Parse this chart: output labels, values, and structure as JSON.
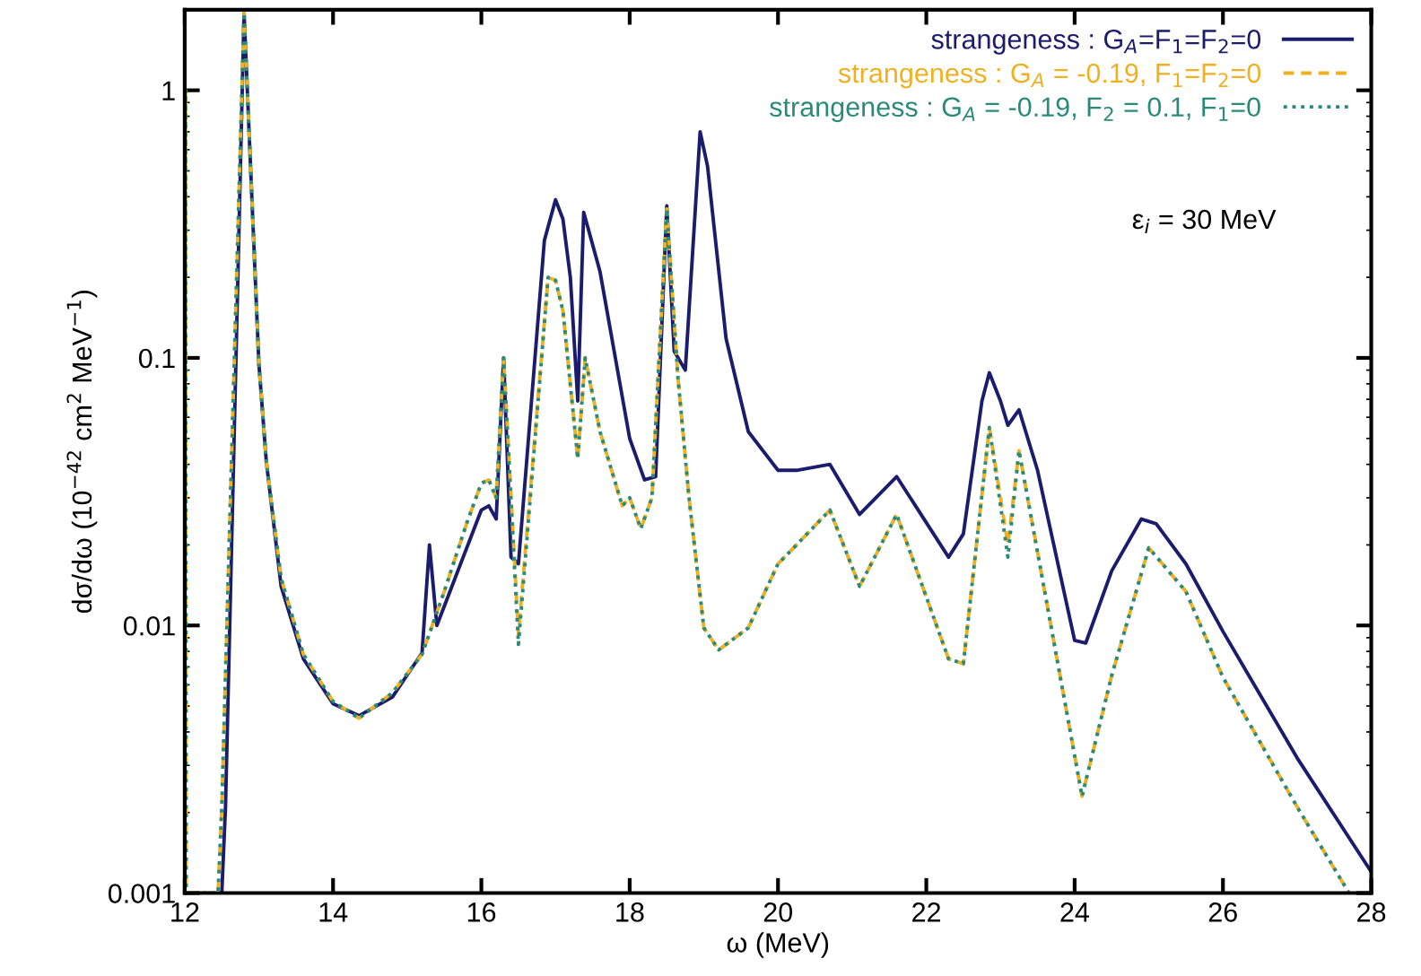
{
  "chart_data": {
    "type": "line",
    "xlabel": "ω (MeV)",
    "ylabel": "dσ/dω (10$^{−42}$ cm$^{2}$ MeV$^{−1}$)",
    "log": "y",
    "xlim": [
      12,
      28
    ],
    "ylim": [
      0.001,
      2
    ],
    "xticks": [
      12,
      14,
      16,
      18,
      20,
      22,
      24,
      26,
      28
    ],
    "yticks": [
      0.001,
      0.01,
      0.1,
      1
    ],
    "grid": false,
    "legend": "top right",
    "marker": "none",
    "annotations": [
      "ε$_{i}$ = 30 MeV"
    ],
    "series": [
      {
        "name": "strangeness : G$_{A}$=F$_{1}$=F$_{2}$=0",
        "color": "#1c1c6e",
        "line_style": "solid",
        "x": [
          12.5,
          12.55,
          12.8,
          13.0,
          13.1,
          13.3,
          13.6,
          14.0,
          14.35,
          14.8,
          15.2,
          15.3,
          15.4,
          16.0,
          16.1,
          16.2,
          16.3,
          16.4,
          16.5,
          16.85,
          17.0,
          17.1,
          17.2,
          17.3,
          17.38,
          17.6,
          18.0,
          18.2,
          18.35,
          18.5,
          18.6,
          18.75,
          18.95,
          19.05,
          19.3,
          19.6,
          20.0,
          20.25,
          20.7,
          21.1,
          21.6,
          22.3,
          22.5,
          22.75,
          22.85,
          23.0,
          23.1,
          23.25,
          23.5,
          24.0,
          24.15,
          24.5,
          24.9,
          25.1,
          25.5,
          26.0,
          27.0,
          28.0
        ],
        "values": [
          0.001,
          0.0021,
          1.95,
          0.095,
          0.041,
          0.014,
          0.0075,
          0.0051,
          0.0046,
          0.0054,
          0.0079,
          0.02,
          0.01,
          0.027,
          0.028,
          0.025,
          0.1,
          0.018,
          0.017,
          0.275,
          0.39,
          0.33,
          0.2,
          0.069,
          0.35,
          0.21,
          0.05,
          0.035,
          0.036,
          0.37,
          0.106,
          0.09,
          0.7,
          0.52,
          0.118,
          0.053,
          0.038,
          0.038,
          0.04,
          0.026,
          0.036,
          0.018,
          0.022,
          0.069,
          0.088,
          0.069,
          0.056,
          0.064,
          0.038,
          0.0088,
          0.0086,
          0.016,
          0.025,
          0.024,
          0.017,
          0.0095,
          0.0032,
          0.0012
        ]
      },
      {
        "name": "strangeness : G$_{A}$ = -0.19, F$_{1}$=F$_{2}$=0",
        "color": "#f0b020",
        "line_style": "dashed",
        "x": [
          12.0,
          12.01,
          12.02,
          12.45,
          12.5,
          12.8,
          13.0,
          13.1,
          13.3,
          13.6,
          14.0,
          14.35,
          14.8,
          15.2,
          15.5,
          15.8,
          16.0,
          16.1,
          16.2,
          16.3,
          16.5,
          16.9,
          17.0,
          17.1,
          17.3,
          17.4,
          17.6,
          17.9,
          18.0,
          18.15,
          18.3,
          18.5,
          18.65,
          18.8,
          19.0,
          19.2,
          19.6,
          20.0,
          20.25,
          20.7,
          21.1,
          21.6,
          22.3,
          22.5,
          22.85,
          23.1,
          23.25,
          24.1,
          24.5,
          25.0,
          25.5,
          26.0,
          27.0,
          27.7
        ],
        "values": [
          0.001,
          1.0,
          0.001,
          0.001,
          0.0021,
          1.95,
          0.095,
          0.041,
          0.015,
          0.0078,
          0.0052,
          0.0045,
          0.0056,
          0.0078,
          0.0134,
          0.024,
          0.034,
          0.035,
          0.03,
          0.1,
          0.0093,
          0.2,
          0.195,
          0.15,
          0.042,
          0.1,
          0.053,
          0.028,
          0.03,
          0.023,
          0.03,
          0.36,
          0.085,
          0.03,
          0.0098,
          0.0081,
          0.0098,
          0.017,
          0.02,
          0.027,
          0.014,
          0.026,
          0.0075,
          0.0072,
          0.055,
          0.02,
          0.045,
          0.0023,
          0.0065,
          0.0195,
          0.0134,
          0.0064,
          0.0021,
          0.001
        ]
      },
      {
        "name": "strangeness : G$_{A}$ = -0.19, F$_{2}$ = 0.1, F$_{1}$=0",
        "color": "#2a8a7a",
        "line_style": "dotted",
        "x": [
          12.0,
          12.01,
          12.02,
          12.45,
          12.5,
          12.8,
          13.0,
          13.1,
          13.3,
          13.6,
          14.0,
          14.35,
          14.8,
          15.2,
          15.5,
          15.8,
          16.0,
          16.1,
          16.2,
          16.3,
          16.5,
          16.9,
          17.0,
          17.1,
          17.3,
          17.4,
          17.6,
          17.9,
          18.0,
          18.15,
          18.3,
          18.5,
          18.65,
          18.8,
          19.0,
          19.2,
          19.6,
          20.0,
          20.25,
          20.7,
          21.1,
          21.6,
          22.3,
          22.5,
          22.85,
          23.1,
          23.25,
          24.1,
          24.5,
          25.0,
          25.5,
          26.0,
          27.0,
          27.7
        ],
        "values": [
          0.001,
          1.0,
          0.001,
          0.001,
          0.0021,
          1.95,
          0.095,
          0.041,
          0.015,
          0.0078,
          0.0052,
          0.0045,
          0.0056,
          0.0078,
          0.0134,
          0.024,
          0.034,
          0.035,
          0.03,
          0.1,
          0.0085,
          0.2,
          0.195,
          0.15,
          0.042,
          0.1,
          0.053,
          0.028,
          0.03,
          0.023,
          0.03,
          0.36,
          0.085,
          0.03,
          0.0098,
          0.0081,
          0.0098,
          0.017,
          0.02,
          0.027,
          0.014,
          0.026,
          0.0075,
          0.0072,
          0.055,
          0.018,
          0.045,
          0.0023,
          0.0065,
          0.0195,
          0.0134,
          0.0064,
          0.0021,
          0.001
        ]
      }
    ]
  }
}
